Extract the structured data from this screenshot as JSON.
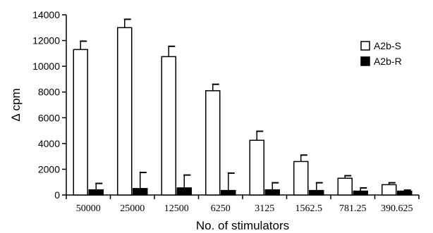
{
  "chart_data": {
    "type": "bar",
    "categories": [
      "50000",
      "25000",
      "12500",
      "6250",
      "3125",
      "1562.5",
      "781.25",
      "390.625"
    ],
    "xlabel": "No. of stimulators",
    "ylabel": "Δ cpm",
    "ylim": [
      0,
      14000
    ],
    "yticks": [
      "0",
      "2000",
      "4000",
      "6000",
      "8000",
      "10000",
      "12000",
      "14000"
    ],
    "legend_position": "right",
    "series": [
      {
        "name": "A2b-S",
        "color": "#ffffff",
        "stroke": "#000000",
        "values": [
          11300,
          13000,
          10750,
          8100,
          4250,
          2600,
          1300,
          800
        ],
        "errors": [
          650,
          650,
          800,
          500,
          700,
          500,
          200,
          150
        ]
      },
      {
        "name": "A2b-R",
        "color": "#000000",
        "stroke": "#000000",
        "values": [
          400,
          500,
          550,
          350,
          400,
          350,
          300,
          300
        ],
        "errors": [
          500,
          1250,
          1000,
          1350,
          550,
          600,
          250,
          80
        ]
      }
    ]
  }
}
